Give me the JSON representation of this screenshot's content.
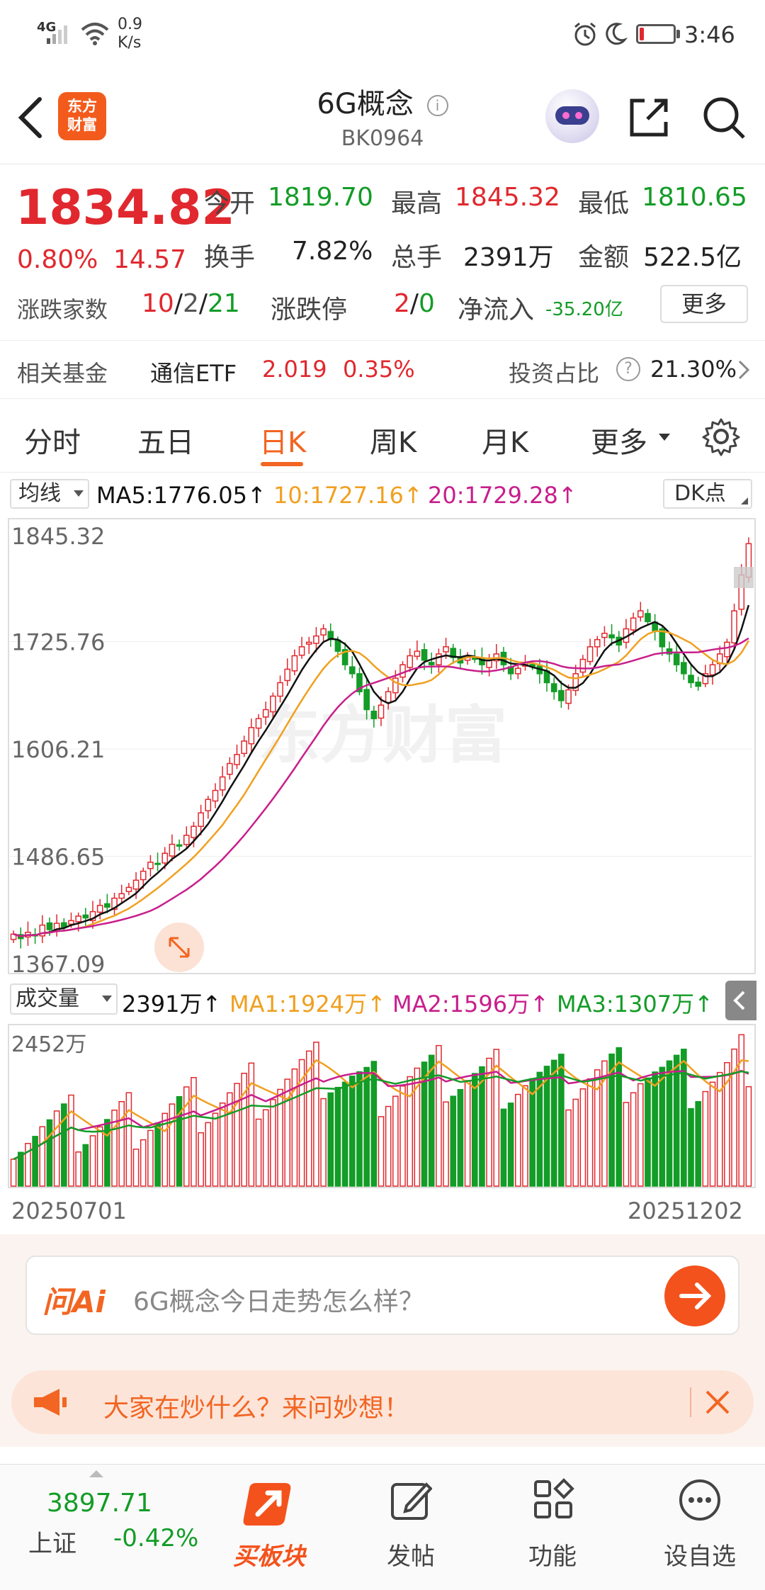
{
  "status_bar": {
    "network": "4G",
    "speed_value": "0.9",
    "speed_unit": "K/s",
    "time": "3:46",
    "battery_level": 0.12
  },
  "header": {
    "logo_text_1": "东方",
    "logo_text_2": "财富",
    "title": "6G概念",
    "code": "BK0964"
  },
  "quote": {
    "price": "1834.82",
    "change_pct": "0.80%",
    "change_value": "14.57",
    "open_label": "今开",
    "open": "1819.70",
    "high_label": "最高",
    "high": "1845.32",
    "low_label": "最低",
    "low": "1810.65",
    "turnover_label": "换手",
    "turnover": "7.82%",
    "volume_label": "总手",
    "volume": "2391万",
    "amount_label": "金额",
    "amount": "522.5亿",
    "breadth_label": "涨跌家数",
    "breadth_up": "10",
    "breadth_sep1": "/",
    "breadth_flat": "2",
    "breadth_sep2": "/",
    "breadth_down": "21",
    "limit_label": "涨跌停",
    "limit_up": "2",
    "limit_sep": "/",
    "limit_down": "0",
    "netflow_label": "净流入",
    "netflow": "-35.20亿",
    "more_button": "更多"
  },
  "fund": {
    "label": "相关基金",
    "name": "通信ETF",
    "price": "2.019",
    "change": "0.35%",
    "ratio_label": "投资占比",
    "ratio": "21.30%"
  },
  "tabs": {
    "items": [
      "分时",
      "五日",
      "日K",
      "周K",
      "月K",
      "更多"
    ],
    "active": "日K"
  },
  "kline": {
    "ma_select": "均线",
    "ma5": "MA5:1776.05↑",
    "ma10": "10:1727.16↑",
    "ma20": "20:1729.28↑",
    "dk_label": "DK点",
    "price_ticks": [
      "1845.32",
      "1725.76",
      "1606.21",
      "1486.65",
      "1367.09"
    ],
    "watermark": "东方财富",
    "colors": {
      "up": "#e0282e",
      "down": "#139c27",
      "ma5": "#111111",
      "ma10": "#f0a020",
      "ma20": "#c81e8c"
    }
  },
  "volume": {
    "select": "成交量",
    "current": "2391万↑",
    "ma1": "MA1:1924万↑",
    "ma2": "MA2:1596万↑",
    "ma3": "MA3:1307万↑",
    "max_label": "2452万",
    "start_date": "20250701",
    "end_date": "20251202"
  },
  "chart_data": {
    "type": "candlestick",
    "ylim": [
      1367.09,
      1845.32
    ],
    "volume_max": 2452,
    "close_series_approx": [
      1400,
      1395,
      1402,
      1398,
      1410,
      1405,
      1412,
      1408,
      1415,
      1420,
      1418,
      1425,
      1432,
      1430,
      1440,
      1445,
      1452,
      1460,
      1470,
      1480,
      1478,
      1490,
      1500,
      1498,
      1510,
      1520,
      1535,
      1550,
      1560,
      1575,
      1590,
      1600,
      1615,
      1630,
      1640,
      1650,
      1665,
      1680,
      1695,
      1710,
      1720,
      1725,
      1732,
      1740,
      1728,
      1715,
      1700,
      1690,
      1670,
      1650,
      1640,
      1655,
      1670,
      1685,
      1700,
      1710,
      1715,
      1705,
      1700,
      1712,
      1720,
      1708,
      1702,
      1710,
      1706,
      1700,
      1705,
      1712,
      1700,
      1690,
      1696,
      1702,
      1698,
      1690,
      1680,
      1670,
      1660,
      1672,
      1690,
      1706,
      1720,
      1728,
      1735,
      1730,
      1722,
      1740,
      1752,
      1760,
      1748,
      1738,
      1720,
      1712,
      1700,
      1690,
      1680,
      1676,
      1690,
      1700,
      1712,
      1725,
      1760,
      1800,
      1834.82
    ]
  },
  "ai": {
    "brand": "问Ai",
    "placeholder": "6G概念今日走势怎么样？"
  },
  "banner": {
    "text": "大家在炒什么？来问妙想！"
  },
  "bottom_bar": {
    "index_value": "3897.71",
    "index_name": "上证",
    "index_change": "-0.42%",
    "items": [
      "买板块",
      "发帖",
      "功能",
      "设自选"
    ]
  }
}
